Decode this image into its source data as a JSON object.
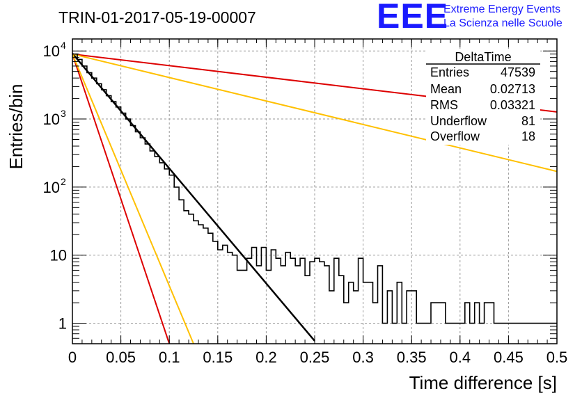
{
  "chart_data": {
    "type": "line",
    "title": "TRIN-01-2017-05-19-00007",
    "xlabel": "Time difference [s]",
    "ylabel": "Entries/bin",
    "xlim": [
      0,
      0.5
    ],
    "ylim": [
      0.5,
      15000
    ],
    "log_y": true,
    "grid": true,
    "x_ticks": [
      "0",
      "0.05",
      "0.1",
      "0.15",
      "0.2",
      "0.25",
      "0.3",
      "0.35",
      "0.4",
      "0.45",
      "0.5"
    ],
    "y_ticks": [
      {
        "value": 1,
        "label": "1",
        "sup": ""
      },
      {
        "value": 10,
        "label": "10",
        "sup": ""
      },
      {
        "value": 100,
        "label": "10",
        "sup": "2"
      },
      {
        "value": 1000,
        "label": "10",
        "sup": "3"
      },
      {
        "value": 10000,
        "label": "10",
        "sup": "4"
      }
    ],
    "histogram": {
      "name": "DeltaTime",
      "bin_width": 0.005,
      "x_start": 0,
      "values": [
        9000,
        7500,
        6000,
        4800,
        4000,
        3300,
        2700,
        2200,
        1800,
        1500,
        1220,
        1000,
        800,
        650,
        530,
        430,
        340,
        280,
        228,
        185,
        150,
        100,
        65,
        45,
        40,
        32,
        28,
        25,
        21,
        16,
        12,
        14,
        11,
        10,
        6,
        6,
        9,
        13,
        7,
        13,
        6,
        12,
        9,
        7,
        11,
        9,
        7,
        9,
        5,
        8,
        9,
        8,
        7,
        3,
        9,
        5,
        2,
        4,
        3,
        9,
        4,
        4,
        2,
        7,
        1,
        3,
        1,
        4,
        1,
        3,
        3,
        1,
        1,
        1,
        2,
        2,
        2,
        1,
        1,
        1,
        1,
        2,
        1,
        2,
        1,
        2,
        2,
        1,
        1,
        1,
        1,
        1,
        1,
        1,
        1,
        1,
        1,
        1,
        1,
        1
      ]
    },
    "fits": [
      {
        "color": "#000000",
        "y0": 9200,
        "x_end": 0.25,
        "y_end": 0.55
      },
      {
        "color": "#dd0000",
        "y0": 9000,
        "x_end": 0.5,
        "y_end": 1270
      },
      {
        "color": "#ffc000",
        "y0": 9000,
        "x_end": 0.5,
        "y_end": 170
      },
      {
        "color": "#dd0000",
        "y0": 9000,
        "x_end": 0.1,
        "y_end": 0.5
      },
      {
        "color": "#ffc000",
        "y0": 9000,
        "x_end": 0.125,
        "y_end": 0.5
      }
    ],
    "stats": {
      "title": "DeltaTime",
      "rows": [
        {
          "label": "Entries",
          "value": "47539"
        },
        {
          "label": "Mean",
          "value": "0.02713"
        },
        {
          "label": "RMS",
          "value": "0.03321"
        },
        {
          "label": "Underflow",
          "value": "81"
        },
        {
          "label": "Overflow",
          "value": "18"
        }
      ]
    }
  },
  "logo": {
    "big": "EEE",
    "line1": "Extreme Energy Events",
    "line2": "La Scienza nelle Scuole",
    "color": "#1a1aff"
  }
}
